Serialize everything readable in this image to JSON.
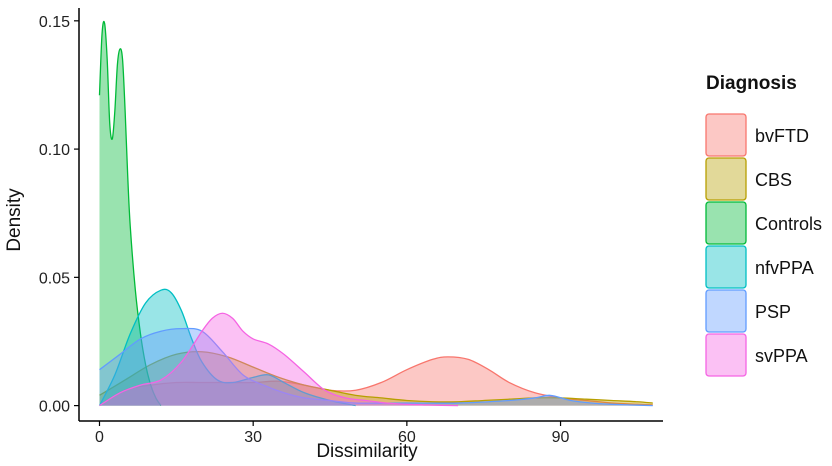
{
  "chart_data": {
    "type": "area",
    "subtype": "density",
    "title": "",
    "xlabel": "Dissimilarity",
    "ylabel": "Density",
    "xlim": [
      -4,
      110
    ],
    "ylim": [
      -0.006,
      0.155
    ],
    "x_ticks": [
      0,
      30,
      60,
      90
    ],
    "x_tick_labels": [
      "0",
      "30",
      "60",
      "90"
    ],
    "y_ticks": [
      0.0,
      0.05,
      0.1,
      0.15
    ],
    "y_tick_labels": [
      "0.00",
      "0.05",
      "0.10",
      "0.15"
    ],
    "grid": false,
    "fill_opacity": 0.4,
    "legend": {
      "title": "Diagnosis",
      "position": "right"
    },
    "series": [
      {
        "name": "bvFTD",
        "color": "#F8766D",
        "x": [
          0,
          5,
          10,
          15,
          20,
          25,
          30,
          35,
          40,
          45,
          50,
          55,
          60,
          65,
          68,
          72,
          76,
          80,
          85,
          90,
          95,
          100,
          105,
          108
        ],
        "y": [
          0.0,
          0.006,
          0.008,
          0.009,
          0.009,
          0.009,
          0.009,
          0.0095,
          0.008,
          0.006,
          0.006,
          0.009,
          0.014,
          0.018,
          0.019,
          0.018,
          0.014,
          0.009,
          0.005,
          0.003,
          0.002,
          0.001,
          0.0005,
          0.0003
        ]
      },
      {
        "name": "CBS",
        "color": "#B79F00",
        "x": [
          0,
          5,
          10,
          15,
          20,
          25,
          30,
          35,
          40,
          45,
          50,
          55,
          60,
          65,
          70,
          75,
          80,
          85,
          90,
          95,
          100,
          105,
          108
        ],
        "y": [
          0.004,
          0.01,
          0.016,
          0.02,
          0.021,
          0.019,
          0.015,
          0.011,
          0.008,
          0.006,
          0.004,
          0.003,
          0.002,
          0.0015,
          0.0015,
          0.002,
          0.0025,
          0.003,
          0.003,
          0.0025,
          0.002,
          0.0015,
          0.001
        ]
      },
      {
        "name": "Controls",
        "color": "#00BA38",
        "x": [
          0,
          0.5,
          1,
          1.5,
          2,
          2.5,
          3,
          3.5,
          4,
          4.5,
          5,
          5.5,
          6,
          7,
          8,
          9,
          10,
          11,
          12
        ],
        "y": [
          0.121,
          0.145,
          0.149,
          0.135,
          0.11,
          0.104,
          0.115,
          0.133,
          0.139,
          0.135,
          0.115,
          0.09,
          0.07,
          0.045,
          0.028,
          0.016,
          0.008,
          0.003,
          0.0
        ]
      },
      {
        "name": "nfvPPA",
        "color": "#00BFC4",
        "x": [
          0,
          3,
          6,
          9,
          12,
          14,
          16,
          18,
          20,
          23,
          26,
          30,
          33,
          36,
          40,
          45,
          50
        ],
        "y": [
          0.0,
          0.012,
          0.028,
          0.04,
          0.045,
          0.044,
          0.037,
          0.026,
          0.017,
          0.01,
          0.009,
          0.011,
          0.012,
          0.009,
          0.005,
          0.002,
          0.0
        ]
      },
      {
        "name": "PSP",
        "color": "#619CFF",
        "x": [
          0,
          4,
          8,
          12,
          16,
          20,
          24,
          28,
          32,
          36,
          40,
          45,
          50,
          60,
          70,
          80,
          85,
          88,
          92,
          96,
          100,
          108
        ],
        "y": [
          0.014,
          0.02,
          0.026,
          0.029,
          0.03,
          0.029,
          0.021,
          0.012,
          0.008,
          0.005,
          0.003,
          0.002,
          0.001,
          0.001,
          0.001,
          0.002,
          0.003,
          0.004,
          0.002,
          0.001,
          0.0005,
          0.0
        ]
      },
      {
        "name": "svPPA",
        "color": "#F564E3",
        "x": [
          0,
          4,
          8,
          12,
          16,
          20,
          22,
          24,
          26,
          28,
          30,
          33,
          36,
          40,
          44,
          48,
          52,
          56,
          60,
          65,
          70
        ],
        "y": [
          0.0,
          0.005,
          0.008,
          0.01,
          0.017,
          0.029,
          0.034,
          0.036,
          0.034,
          0.029,
          0.026,
          0.024,
          0.02,
          0.013,
          0.006,
          0.003,
          0.002,
          0.001,
          0.0005,
          0.0002,
          0.0
        ]
      }
    ]
  }
}
